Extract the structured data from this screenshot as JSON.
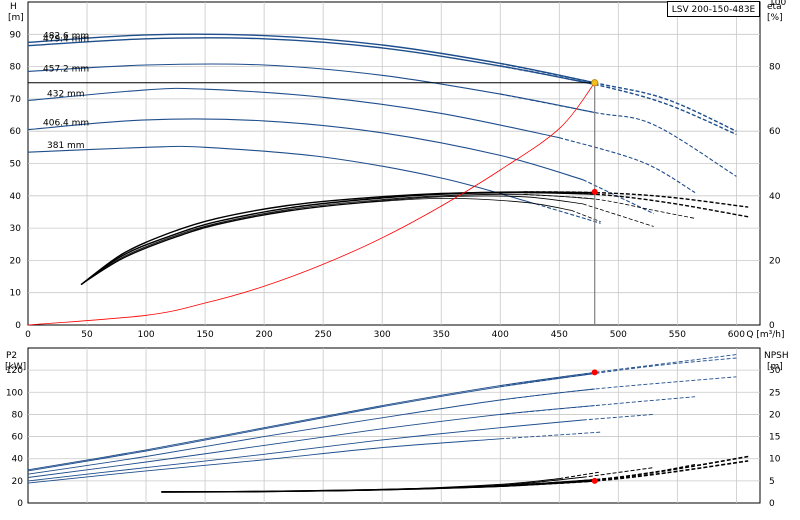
{
  "title": "LSV 200-150-483E",
  "chart_data": [
    {
      "type": "line",
      "name": "performance-chart",
      "x_label": "Q [m³/h]",
      "y_left_label": [
        "H",
        "[m]"
      ],
      "y_right_label": [
        "eta",
        "[%]"
      ],
      "xlim": [
        0,
        620
      ],
      "ylim_left": [
        0,
        100
      ],
      "ylim_right": [
        0,
        100
      ],
      "x_ticks": [
        "0",
        "50",
        "100",
        "150",
        "200",
        "250",
        "300",
        "350",
        "400",
        "450",
        "500",
        "550",
        "600"
      ],
      "y_left_ticks": [
        "0",
        "10",
        "20",
        "30",
        "40",
        "50",
        "60",
        "70",
        "80",
        "90"
      ],
      "y_right_ticks": [
        "0",
        "20",
        "40",
        "60",
        "80",
        "100"
      ],
      "head_curves": [
        {
          "label": "482.6 mm",
          "points": [
            [
              0,
              87.5
            ],
            [
              100,
              89.8
            ],
            [
              200,
              89.6
            ],
            [
              300,
              86.7
            ],
            [
              400,
              81.0
            ],
            [
              480,
              75.0
            ],
            [
              540,
              70.0
            ],
            [
              600,
              60.0
            ]
          ]
        },
        {
          "label": "479.4 mm",
          "points": [
            [
              0,
              86.5
            ],
            [
              100,
              88.6
            ],
            [
              200,
              88.6
            ],
            [
              300,
              85.8
            ],
            [
              400,
              80.2
            ],
            [
              480,
              74.5
            ],
            [
              540,
              68.5
            ],
            [
              600,
              59.0
            ]
          ]
        },
        {
          "label": "457.2 mm",
          "points": [
            [
              0,
              78.5
            ],
            [
              100,
              80.5
            ],
            [
              200,
              80.5
            ],
            [
              300,
              77.3
            ],
            [
              400,
              71.5
            ],
            [
              480,
              65.8
            ],
            [
              530,
              62.0
            ],
            [
              600,
              46.0
            ]
          ]
        },
        {
          "label": "432 mm",
          "points": [
            [
              0,
              69.5
            ],
            [
              100,
              72.8
            ],
            [
              150,
              73.0
            ],
            [
              250,
              70.5
            ],
            [
              350,
              65.5
            ],
            [
              450,
              58.0
            ],
            [
              520,
              50.5
            ],
            [
              565,
              41.0
            ]
          ]
        },
        {
          "label": "406.4 mm",
          "points": [
            [
              0,
              60.5
            ],
            [
              100,
              63.5
            ],
            [
              200,
              63.2
            ],
            [
              300,
              59.5
            ],
            [
              400,
              52.5
            ],
            [
              470,
              45.0
            ],
            [
              530,
              34.5
            ]
          ]
        },
        {
          "label": "381 mm",
          "points": [
            [
              0,
              53.5
            ],
            [
              100,
              55.0
            ],
            [
              150,
              55.0
            ],
            [
              250,
              52.0
            ],
            [
              350,
              45.5
            ],
            [
              430,
              37.5
            ],
            [
              485,
              31.5
            ]
          ]
        }
      ],
      "efficiency_curves": [
        {
          "points": [
            [
              45,
              12.5
            ],
            [
              80,
              22.0
            ],
            [
              120,
              28.5
            ],
            [
              160,
              33.0
            ],
            [
              220,
              37.0
            ],
            [
              280,
              39.2
            ],
            [
              350,
              40.7
            ],
            [
              420,
              41.2
            ],
            [
              480,
              41.0
            ],
            [
              540,
              39.7
            ],
            [
              610,
              36.5
            ]
          ]
        },
        {
          "points": [
            [
              45,
              12.5
            ],
            [
              80,
              21.5
            ],
            [
              120,
              27.5
            ],
            [
              160,
              32.0
            ],
            [
              220,
              36.2
            ],
            [
              280,
              38.7
            ],
            [
              350,
              40.5
            ],
            [
              420,
              41.0
            ],
            [
              480,
              40.5
            ],
            [
              540,
              38.0
            ],
            [
              610,
              33.5
            ]
          ]
        },
        {
          "points": [
            [
              45,
              12.5
            ],
            [
              80,
              21.0
            ],
            [
              120,
              27.0
            ],
            [
              160,
              31.5
            ],
            [
              220,
              35.7
            ],
            [
              280,
              38.2
            ],
            [
              350,
              40.0
            ],
            [
              420,
              40.4
            ],
            [
              480,
              39.0
            ],
            [
              530,
              35.5
            ],
            [
              565,
              33.0
            ]
          ]
        },
        {
          "points": [
            [
              45,
              12.5
            ],
            [
              80,
              20.7
            ],
            [
              120,
              26.7
            ],
            [
              160,
              31.2
            ],
            [
              220,
              35.4
            ],
            [
              280,
              37.9
            ],
            [
              350,
              39.7
            ],
            [
              420,
              39.7
            ],
            [
              470,
              37.5
            ],
            [
              530,
              30.5
            ]
          ]
        },
        {
          "points": [
            [
              45,
              12.5
            ],
            [
              80,
              20.5
            ],
            [
              120,
              26.5
            ],
            [
              160,
              31.0
            ],
            [
              220,
              35.2
            ],
            [
              280,
              37.7
            ],
            [
              350,
              39.2
            ],
            [
              420,
              38.0
            ],
            [
              460,
              35.5
            ],
            [
              485,
              32.0
            ]
          ]
        }
      ],
      "system_curve": {
        "points": [
          [
            0,
            0
          ],
          [
            100,
            3.0
          ],
          [
            150,
            6.8
          ],
          [
            200,
            12.0
          ],
          [
            250,
            18.8
          ],
          [
            300,
            27.0
          ],
          [
            350,
            36.8
          ],
          [
            400,
            48.0
          ],
          [
            450,
            60.8
          ],
          [
            480,
            75.0
          ]
        ]
      },
      "duty_point": {
        "q": 480,
        "h": 75,
        "eta": 41.2
      }
    },
    {
      "type": "line",
      "name": "power-npsh-chart",
      "x_label": "",
      "y_left_label": [
        "P2",
        "[kW]"
      ],
      "y_right_label": [
        "NPSH",
        "[m]"
      ],
      "xlim": [
        0,
        620
      ],
      "ylim_left": [
        0,
        140
      ],
      "ylim_right": [
        0,
        35
      ],
      "y_left_ticks": [
        "0",
        "20",
        "40",
        "60",
        "80",
        "100",
        "120"
      ],
      "y_right_ticks": [
        "0",
        "5",
        "10",
        "15",
        "20",
        "25",
        "30"
      ],
      "power_curves": [
        {
          "points": [
            [
              0,
              30
            ],
            [
              100,
              48
            ],
            [
              200,
              68
            ],
            [
              300,
              88
            ],
            [
              400,
              106
            ],
            [
              480,
              118
            ],
            [
              540,
              126
            ],
            [
              600,
              134
            ]
          ]
        },
        {
          "points": [
            [
              0,
              29
            ],
            [
              100,
              47
            ],
            [
              200,
              67
            ],
            [
              300,
              87
            ],
            [
              400,
              105
            ],
            [
              480,
              117
            ],
            [
              540,
              125
            ],
            [
              600,
              131
            ]
          ]
        },
        {
          "points": [
            [
              0,
              26
            ],
            [
              100,
              42
            ],
            [
              200,
              60
            ],
            [
              300,
              77
            ],
            [
              400,
              93
            ],
            [
              480,
              103
            ],
            [
              600,
              114
            ]
          ]
        },
        {
          "points": [
            [
              0,
              23
            ],
            [
              100,
              37
            ],
            [
              200,
              52
            ],
            [
              300,
              67
            ],
            [
              400,
              80
            ],
            [
              480,
              88
            ],
            [
              565,
              96
            ]
          ]
        },
        {
          "points": [
            [
              0,
              20
            ],
            [
              100,
              32
            ],
            [
              200,
              44
            ],
            [
              300,
              57
            ],
            [
              400,
              68
            ],
            [
              470,
              75
            ],
            [
              530,
              80
            ]
          ]
        },
        {
          "points": [
            [
              0,
              18
            ],
            [
              100,
              29
            ],
            [
              200,
              39
            ],
            [
              300,
              50
            ],
            [
              400,
              58
            ],
            [
              485,
              64
            ]
          ]
        }
      ],
      "npsh_curves": [
        {
          "points": [
            [
              113,
              2.5
            ],
            [
              200,
              2.6
            ],
            [
              300,
              3.0
            ],
            [
              400,
              3.8
            ],
            [
              480,
              5.2
            ],
            [
              540,
              7.3
            ],
            [
              610,
              10.5
            ]
          ]
        },
        {
          "points": [
            [
              113,
              2.5
            ],
            [
              200,
              2.6
            ],
            [
              300,
              3.0
            ],
            [
              400,
              3.8
            ],
            [
              480,
              5.0
            ],
            [
              540,
              6.8
            ],
            [
              610,
              9.5
            ]
          ]
        },
        {
          "points": [
            [
              113,
              2.5
            ],
            [
              200,
              2.6
            ],
            [
              300,
              3.0
            ],
            [
              400,
              3.9
            ],
            [
              480,
              5.3
            ],
            [
              530,
              7.0
            ],
            [
              565,
              8.7
            ]
          ]
        },
        {
          "points": [
            [
              113,
              2.5
            ],
            [
              200,
              2.6
            ],
            [
              300,
              3.0
            ],
            [
              400,
              4.0
            ],
            [
              470,
              5.8
            ],
            [
              530,
              8.0
            ]
          ]
        },
        {
          "points": [
            [
              113,
              2.5
            ],
            [
              200,
              2.6
            ],
            [
              300,
              3.0
            ],
            [
              400,
              4.2
            ],
            [
              450,
              5.5
            ],
            [
              485,
              7.0
            ]
          ]
        }
      ],
      "duty_point": {
        "q": 480,
        "p2": 118,
        "npsh": 5.0
      }
    }
  ]
}
